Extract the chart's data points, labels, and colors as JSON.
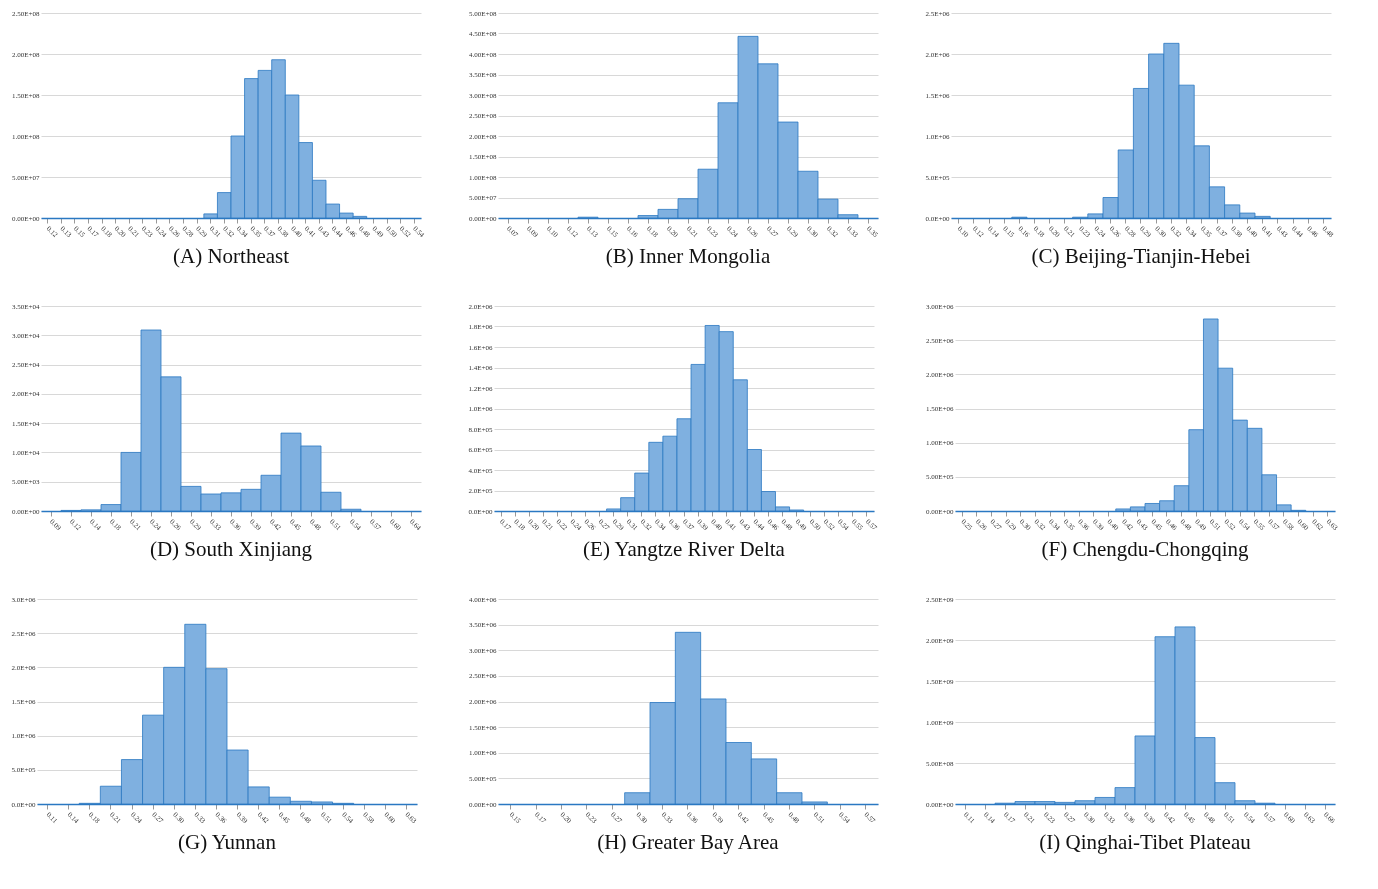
{
  "chart_data": [
    {
      "type": "bar",
      "title": "(A) Northeast",
      "color": "#7fb0e0",
      "grid": "y",
      "ylim": [
        0,
        250000000
      ],
      "yticks": [
        {
          "value": 0,
          "label": "0.00E+00"
        },
        {
          "value": 50000000,
          "label": "5.00E+07"
        },
        {
          "value": 100000000,
          "label": "1.00E+08"
        },
        {
          "value": 150000000,
          "label": "1.50E+08"
        },
        {
          "value": 200000000,
          "label": "2.00E+08"
        },
        {
          "value": 250000000,
          "label": "2.50E+08"
        }
      ],
      "categories": [
        "0.12",
        "0.13",
        "0.15",
        "0.17",
        "0.18",
        "0.20",
        "0.21",
        "0.23",
        "0.24",
        "0.26",
        "0.28",
        "0.29",
        "0.31",
        "0.32",
        "0.34",
        "0.35",
        "0.37",
        "0.38",
        "0.40",
        "0.41",
        "0.43",
        "0.44",
        "0.46",
        "0.48",
        "0.49",
        "0.50",
        "0.52",
        "0.54"
      ],
      "values": [
        0,
        0,
        0,
        0,
        0,
        0,
        0,
        0,
        0,
        0,
        0,
        0,
        5000000,
        31000000,
        100000000,
        170000000,
        180000000,
        193000000,
        150000000,
        92000000,
        46000000,
        17000000,
        6000000,
        2000000,
        0,
        0,
        0,
        0
      ]
    },
    {
      "type": "bar",
      "title": "(B) Inner Mongolia",
      "color": "#7fb0e0",
      "grid": "y",
      "ylim": [
        0,
        500000000
      ],
      "yticks": [
        {
          "value": 0,
          "label": "0.00E+00"
        },
        {
          "value": 50000000,
          "label": "5.00E+07"
        },
        {
          "value": 100000000,
          "label": "1.00E+08"
        },
        {
          "value": 150000000,
          "label": "1.50E+08"
        },
        {
          "value": 200000000,
          "label": "2.00E+08"
        },
        {
          "value": 250000000,
          "label": "2.50E+08"
        },
        {
          "value": 300000000,
          "label": "3.00E+08"
        },
        {
          "value": 350000000,
          "label": "3.50E+08"
        },
        {
          "value": 400000000,
          "label": "4.00E+08"
        },
        {
          "value": 450000000,
          "label": "4.50E+08"
        },
        {
          "value": 500000000,
          "label": "5.00E+08"
        }
      ],
      "categories": [
        "0.07",
        "0.09",
        "0.10",
        "0.12",
        "0.13",
        "0.15",
        "0.16",
        "0.18",
        "0.20",
        "0.21",
        "0.23",
        "0.24",
        "0.26",
        "0.27",
        "0.29",
        "0.30",
        "0.32",
        "0.33",
        "0.35"
      ],
      "values": [
        0,
        0,
        0,
        0,
        2000000,
        0,
        0,
        6000000,
        21000000,
        47000000,
        119000000,
        281000000,
        443000000,
        376000000,
        234000000,
        114000000,
        46000000,
        8000000,
        0
      ]
    },
    {
      "type": "bar",
      "title": "(C) Beijing-Tianjin-Hebei",
      "color": "#7fb0e0",
      "grid": "y",
      "ylim": [
        0,
        2500000
      ],
      "yticks": [
        {
          "value": 0,
          "label": "0.0E+00"
        },
        {
          "value": 500000,
          "label": "5.0E+05"
        },
        {
          "value": 1000000,
          "label": "1.0E+06"
        },
        {
          "value": 1500000,
          "label": "1.5E+06"
        },
        {
          "value": 2000000,
          "label": "2.0E+06"
        },
        {
          "value": 2500000,
          "label": "2.5E+06"
        }
      ],
      "categories": [
        "0.10",
        "0.12",
        "0.14",
        "0.15",
        "0.16",
        "0.18",
        "0.20",
        "0.21",
        "0.23",
        "0.24",
        "0.26",
        "0.28",
        "0.29",
        "0.30",
        "0.32",
        "0.34",
        "0.35",
        "0.37",
        "0.38",
        "0.40",
        "0.41",
        "0.43",
        "0.44",
        "0.46",
        "0.48"
      ],
      "values": [
        0,
        0,
        0,
        0,
        10000,
        0,
        0,
        0,
        10000,
        50000,
        250000,
        830000,
        1580000,
        2000000,
        2130000,
        1620000,
        880000,
        380000,
        160000,
        60000,
        20000,
        0,
        0,
        0,
        0
      ]
    },
    {
      "type": "bar",
      "title": "(D) South Xinjiang",
      "color": "#7fb0e0",
      "grid": "y",
      "ylim": [
        0,
        35000
      ],
      "yticks": [
        {
          "value": 0,
          "label": "0.00E+00"
        },
        {
          "value": 5000,
          "label": "5.00E+03"
        },
        {
          "value": 10000,
          "label": "1.00E+04"
        },
        {
          "value": 15000,
          "label": "1.50E+04"
        },
        {
          "value": 20000,
          "label": "2.00E+04"
        },
        {
          "value": 25000,
          "label": "2.50E+04"
        },
        {
          "value": 30000,
          "label": "3.00E+04"
        },
        {
          "value": 35000,
          "label": "3.50E+04"
        }
      ],
      "categories": [
        "0.09",
        "0.12",
        "0.14",
        "0.18",
        "0.21",
        "0.24",
        "0.26",
        "0.29",
        "0.33",
        "0.36",
        "0.39",
        "0.42",
        "0.45",
        "0.48",
        "0.51",
        "0.54",
        "0.57",
        "0.60",
        "0.64"
      ],
      "values": [
        0,
        100,
        200,
        1100,
        10000,
        30900,
        22900,
        4200,
        2900,
        3100,
        3700,
        6100,
        13300,
        11100,
        3200,
        300,
        0,
        0,
        0
      ]
    },
    {
      "type": "bar",
      "title": "(E) Yangtze River Delta",
      "color": "#7fb0e0",
      "grid": "y",
      "ylim": [
        0,
        2000000
      ],
      "yticks": [
        {
          "value": 0,
          "label": "0.0E+00"
        },
        {
          "value": 200000,
          "label": "2.0E+05"
        },
        {
          "value": 400000,
          "label": "4.0E+05"
        },
        {
          "value": 600000,
          "label": "6.0E+05"
        },
        {
          "value": 800000,
          "label": "8.0E+05"
        },
        {
          "value": 1000000,
          "label": "1.0E+06"
        },
        {
          "value": 1200000,
          "label": "1.2E+06"
        },
        {
          "value": 1400000,
          "label": "1.4E+06"
        },
        {
          "value": 1600000,
          "label": "1.6E+06"
        },
        {
          "value": 1800000,
          "label": "1.8E+06"
        },
        {
          "value": 2000000,
          "label": "2.0E+06"
        }
      ],
      "categories": [
        "0.17",
        "0.18",
        "0.20",
        "0.21",
        "0.22",
        "0.24",
        "0.26",
        "0.27",
        "0.29",
        "0.31",
        "0.32",
        "0.34",
        "0.36",
        "0.37",
        "0.39",
        "0.40",
        "0.41",
        "0.43",
        "0.44",
        "0.46",
        "0.48",
        "0.49",
        "0.50",
        "0.52",
        "0.54",
        "0.55",
        "0.57"
      ],
      "values": [
        0,
        0,
        0,
        0,
        0,
        0,
        0,
        0,
        20000,
        130000,
        370000,
        670000,
        730000,
        900000,
        1430000,
        1810000,
        1750000,
        1280000,
        600000,
        190000,
        40000,
        10000,
        0,
        0,
        0,
        0,
        0
      ]
    },
    {
      "type": "bar",
      "title": "(F) Chengdu-Chongqing",
      "color": "#7fb0e0",
      "grid": "y",
      "ylim": [
        0,
        3000000
      ],
      "yticks": [
        {
          "value": 0,
          "label": "0.00E+00"
        },
        {
          "value": 500000,
          "label": "5.00E+05"
        },
        {
          "value": 1000000,
          "label": "1.00E+06"
        },
        {
          "value": 1500000,
          "label": "1.50E+06"
        },
        {
          "value": 2000000,
          "label": "2.00E+06"
        },
        {
          "value": 2500000,
          "label": "2.50E+06"
        },
        {
          "value": 3000000,
          "label": "3.00E+06"
        }
      ],
      "categories": [
        "0.25",
        "0.26",
        "0.27",
        "0.29",
        "0.30",
        "0.32",
        "0.34",
        "0.35",
        "0.36",
        "0.39",
        "0.40",
        "0.42",
        "0.43",
        "0.45",
        "0.46",
        "0.48",
        "0.49",
        "0.51",
        "0.52",
        "0.54",
        "0.55",
        "0.57",
        "0.58",
        "0.60",
        "0.62",
        "0.63"
      ],
      "values": [
        0,
        0,
        0,
        0,
        0,
        0,
        0,
        0,
        0,
        0,
        0,
        30000,
        60000,
        110000,
        150000,
        370000,
        1190000,
        2810000,
        2090000,
        1330000,
        1210000,
        530000,
        90000,
        10000,
        0,
        0
      ]
    },
    {
      "type": "bar",
      "title": "(G) Yunnan",
      "color": "#7fb0e0",
      "grid": "y",
      "ylim": [
        0,
        3000000
      ],
      "yticks": [
        {
          "value": 0,
          "label": "0.0E+00"
        },
        {
          "value": 500000,
          "label": "5.0E+05"
        },
        {
          "value": 1000000,
          "label": "1.0E+06"
        },
        {
          "value": 1500000,
          "label": "1.5E+06"
        },
        {
          "value": 2000000,
          "label": "2.0E+06"
        },
        {
          "value": 2500000,
          "label": "2.5E+06"
        },
        {
          "value": 3000000,
          "label": "3.0E+06"
        }
      ],
      "categories": [
        "0.11",
        "0.14",
        "0.18",
        "0.21",
        "0.24",
        "0.27",
        "0.30",
        "0.33",
        "0.36",
        "0.39",
        "0.42",
        "0.45",
        "0.48",
        "0.51",
        "0.54",
        "0.58",
        "0.60",
        "0.63"
      ],
      "values": [
        0,
        0,
        10000,
        260000,
        650000,
        1300000,
        2000000,
        2630000,
        1980000,
        790000,
        250000,
        100000,
        40000,
        30000,
        10000,
        0,
        0,
        0
      ]
    },
    {
      "type": "bar",
      "title": "(H) Greater Bay Area",
      "color": "#7fb0e0",
      "grid": "y",
      "ylim": [
        0,
        4000000
      ],
      "yticks": [
        {
          "value": 0,
          "label": "0.00E+00"
        },
        {
          "value": 500000,
          "label": "5.00E+05"
        },
        {
          "value": 1000000,
          "label": "1.00E+06"
        },
        {
          "value": 1500000,
          "label": "1.50E+06"
        },
        {
          "value": 2000000,
          "label": "2.00E+06"
        },
        {
          "value": 2500000,
          "label": "2.50E+06"
        },
        {
          "value": 3000000,
          "label": "3.00E+06"
        },
        {
          "value": 3500000,
          "label": "3.50E+06"
        },
        {
          "value": 4000000,
          "label": "4.00E+06"
        }
      ],
      "categories": [
        "0.15",
        "0.17",
        "0.20",
        "0.23",
        "0.27",
        "0.30",
        "0.33",
        "0.36",
        "0.39",
        "0.42",
        "0.45",
        "0.48",
        "0.51",
        "0.54",
        "0.57"
      ],
      "values": [
        0,
        0,
        0,
        0,
        0,
        220000,
        1980000,
        3350000,
        2050000,
        1200000,
        880000,
        220000,
        40000,
        0,
        0
      ]
    },
    {
      "type": "bar",
      "title": "(I) Qinghai-Tibet Plateau",
      "color": "#7fb0e0",
      "grid": "y",
      "ylim": [
        0,
        2500000000
      ],
      "yticks": [
        {
          "value": 0,
          "label": "0.00E+00"
        },
        {
          "value": 500000000,
          "label": "5.00E+08"
        },
        {
          "value": 1000000000,
          "label": "1.00E+09"
        },
        {
          "value": 1500000000,
          "label": "1.50E+09"
        },
        {
          "value": 2000000000,
          "label": "2.00E+09"
        },
        {
          "value": 2500000000,
          "label": "2.50E+09"
        }
      ],
      "categories": [
        "0.11",
        "0.14",
        "0.17",
        "0.21",
        "0.23",
        "0.27",
        "0.30",
        "0.33",
        "0.36",
        "0.39",
        "0.42",
        "0.45",
        "0.48",
        "0.51",
        "0.54",
        "0.57",
        "0.60",
        "0.63",
        "0.66"
      ],
      "values": [
        0,
        0,
        10000000,
        30000000,
        30000000,
        20000000,
        40000000,
        80000000,
        200000000,
        830000000,
        2040000000,
        2160000000,
        810000000,
        260000000,
        40000000,
        10000000,
        0,
        0,
        0
      ]
    }
  ]
}
